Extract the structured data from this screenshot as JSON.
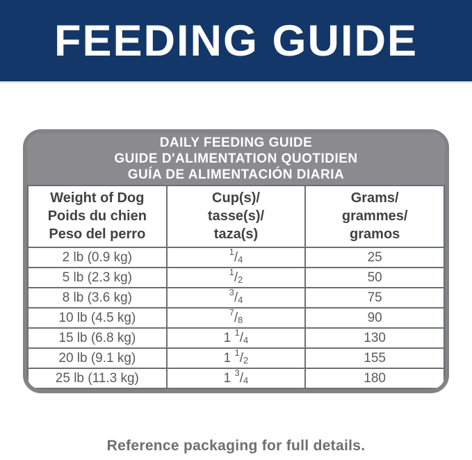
{
  "colors": {
    "banner_blue": "#143769",
    "card_header_gray": "#8B8B8E",
    "card_border_gray": "#828387",
    "grid_line_gray": "#6D6E71",
    "header_text_dark": "#414042",
    "cell_text_gray": "#58595B",
    "note_text_gray": "#6D6E71",
    "text_white": "#FFFFFF"
  },
  "banner": {
    "title": "FEEDING GUIDE"
  },
  "guide_box": {
    "header_lines": [
      "DAILY FEEDING GUIDE",
      "GUIDE D'ALIMENTATION QUOTIDIEN",
      "GUÍA DE ALIMENTACIÓN DIARIA"
    ]
  },
  "table": {
    "columns": [
      {
        "lines": [
          "Weight of Dog",
          "Poids du chien",
          "Peso del perro"
        ]
      },
      {
        "lines": [
          "Cup(s)/",
          "tasse(s)/",
          "taza(s)"
        ]
      },
      {
        "lines": [
          "Grams/",
          "grammes/",
          "gramos"
        ]
      }
    ],
    "rows": [
      {
        "weight": "2 lb (0.9 kg)",
        "cups": {
          "whole": "",
          "num": "1",
          "slash": "/",
          "den": "4"
        },
        "grams": "25"
      },
      {
        "weight": "5 lb (2.3 kg)",
        "cups": {
          "whole": "",
          "num": "1",
          "slash": "/",
          "den": "2"
        },
        "grams": "50"
      },
      {
        "weight": "8 lb (3.6 kg)",
        "cups": {
          "whole": "",
          "num": "3",
          "slash": "/",
          "den": "4"
        },
        "grams": "75"
      },
      {
        "weight": "10 lb (4.5 kg)",
        "cups": {
          "whole": "",
          "num": "7",
          "slash": "/",
          "den": "8"
        },
        "grams": "90"
      },
      {
        "weight": "15 lb (6.8 kg)",
        "cups": {
          "whole": "1",
          "num": "1",
          "slash": "/",
          "den": "4"
        },
        "grams": "130"
      },
      {
        "weight": "20 lb (9.1 kg)",
        "cups": {
          "whole": "1",
          "num": "1",
          "slash": "/",
          "den": "2"
        },
        "grams": "155"
      },
      {
        "weight": "25 lb (11.3 kg)",
        "cups": {
          "whole": "1",
          "num": "3",
          "slash": "/",
          "den": "4"
        },
        "grams": "180"
      }
    ]
  },
  "footer": {
    "note": "Reference packaging for full details."
  }
}
